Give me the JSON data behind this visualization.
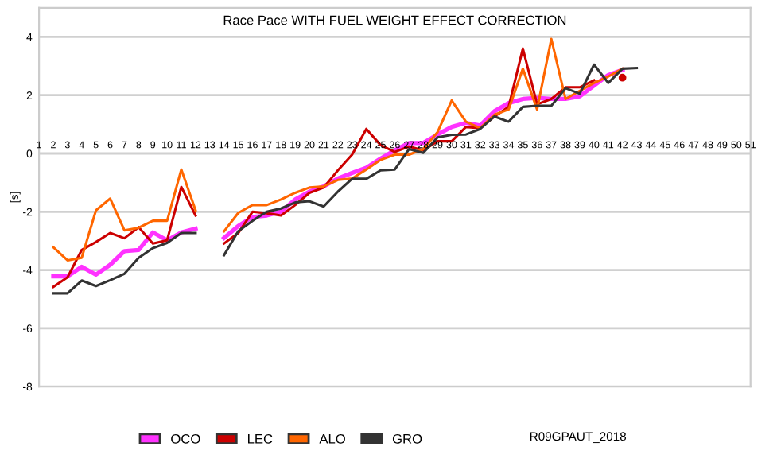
{
  "chart_data": {
    "type": "line",
    "title": "Race Pace WITH FUEL WEIGHT EFFECT CORRECTION",
    "ylabel": "[s]",
    "x": [
      2,
      3,
      4,
      5,
      6,
      7,
      8,
      9,
      10,
      11,
      12,
      13,
      14,
      15,
      16,
      17,
      18,
      19,
      20,
      21,
      22,
      23,
      24,
      25,
      26,
      27,
      28,
      29,
      30,
      31,
      32,
      33,
      34,
      35,
      36,
      37,
      38,
      39,
      40,
      41,
      42,
      43
    ],
    "series": [
      {
        "name": "OCO",
        "color": "#ff33ff",
        "values": [
          -4.22,
          -4.22,
          -3.89,
          -4.16,
          -3.82,
          -3.35,
          -3.31,
          -2.71,
          -2.98,
          -2.71,
          -2.58,
          null,
          -2.9,
          -2.49,
          -2.18,
          -2.13,
          -2.0,
          -1.58,
          -1.31,
          -1.13,
          -0.86,
          -0.67,
          -0.49,
          -0.18,
          0.11,
          0.36,
          0.36,
          0.65,
          0.91,
          1.05,
          0.96,
          1.45,
          1.73,
          1.87,
          1.91,
          1.87,
          1.87,
          1.96,
          2.33,
          2.69,
          2.87,
          null
        ]
      },
      {
        "name": "LEC",
        "color": "#cc0000",
        "values": [
          -4.58,
          -4.25,
          -3.31,
          -3.04,
          -2.73,
          -2.91,
          -2.53,
          -3.09,
          -2.98,
          -1.15,
          -2.13,
          null,
          -3.09,
          -2.73,
          -2.0,
          -2.05,
          -2.13,
          -1.77,
          -1.35,
          -1.17,
          -0.58,
          -0.04,
          0.84,
          0.29,
          0.05,
          0.24,
          0.11,
          0.42,
          0.42,
          0.91,
          0.87,
          1.27,
          1.6,
          3.6,
          1.69,
          1.87,
          2.27,
          2.27,
          2.51,
          null,
          2.6,
          null
        ]
      },
      {
        "name": "ALO",
        "color": "#ff6600",
        "values": [
          -3.22,
          -3.67,
          -3.58,
          -1.95,
          -1.55,
          -2.64,
          -2.55,
          -2.31,
          -2.31,
          -0.55,
          -1.95,
          null,
          -2.67,
          -2.04,
          -1.77,
          -1.77,
          -1.58,
          -1.35,
          -1.17,
          -1.13,
          -0.91,
          -0.86,
          -0.55,
          -0.22,
          -0.04,
          -0.04,
          0.15,
          0.73,
          1.82,
          1.09,
          0.87,
          1.33,
          1.51,
          2.91,
          1.51,
          3.93,
          1.87,
          2.15,
          2.42,
          2.64,
          2.91,
          null
        ]
      },
      {
        "name": "GRO",
        "color": "#333333",
        "values": [
          -4.8,
          -4.8,
          -4.36,
          -4.55,
          -4.35,
          -4.13,
          -3.58,
          -3.25,
          -3.07,
          -2.73,
          -2.73,
          null,
          -3.49,
          -2.67,
          -2.31,
          -2.0,
          -1.89,
          -1.68,
          -1.64,
          -1.82,
          -1.31,
          -0.87,
          -0.87,
          -0.58,
          -0.55,
          0.15,
          0.02,
          0.55,
          0.64,
          0.65,
          0.84,
          1.27,
          1.09,
          1.6,
          1.64,
          1.64,
          2.24,
          2.05,
          3.05,
          2.42,
          2.91,
          2.93
        ]
      }
    ],
    "xlim": [
      1,
      51
    ],
    "xticks": [
      1,
      2,
      3,
      4,
      5,
      6,
      7,
      8,
      9,
      10,
      11,
      12,
      13,
      14,
      15,
      16,
      17,
      18,
      19,
      20,
      21,
      22,
      23,
      24,
      25,
      26,
      27,
      28,
      29,
      30,
      31,
      32,
      33,
      34,
      35,
      36,
      37,
      38,
      39,
      40,
      41,
      42,
      43,
      44,
      45,
      46,
      47,
      48,
      49,
      50,
      51
    ],
    "ylim": [
      -8,
      5
    ],
    "yticks": [
      -8,
      -6,
      -4,
      -2,
      0,
      2,
      4
    ],
    "grid": "y",
    "legend": "bottom",
    "marker": "none",
    "line_style": "solid",
    "annotations": [
      "R09GPAUT_2018"
    ]
  }
}
